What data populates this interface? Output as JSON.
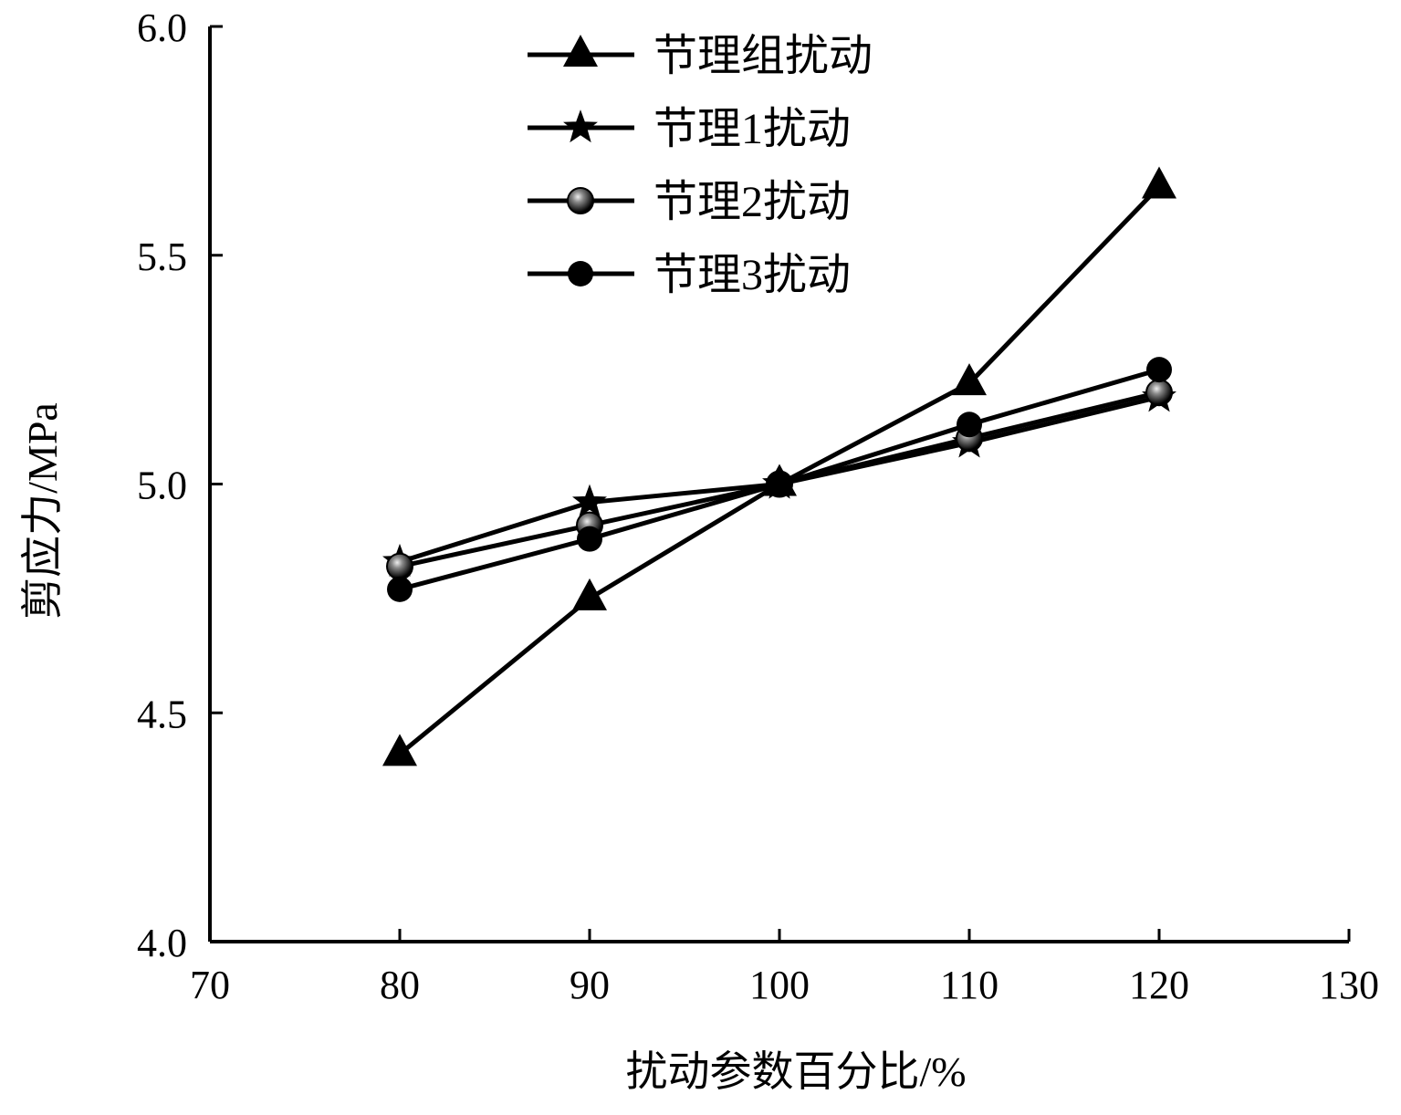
{
  "chart_data": {
    "type": "line",
    "title": "",
    "xlabel": "扰动参数百分比/%",
    "ylabel": "剪应力/MPa",
    "xlim": [
      70,
      130
    ],
    "ylim": [
      4.0,
      6.0
    ],
    "xticks": [
      "70",
      "80",
      "90",
      "100",
      "110",
      "120",
      "130"
    ],
    "yticks": [
      "4.0",
      "4.5",
      "5.0",
      "5.5",
      "6.0"
    ],
    "x": [
      80,
      90,
      100,
      110,
      120
    ],
    "legend_position": "top-center",
    "grid": false,
    "series": [
      {
        "name": "节理组扰动",
        "marker": "triangle",
        "values": [
          4.41,
          4.75,
          5.0,
          5.22,
          5.65
        ]
      },
      {
        "name": "节理1扰动",
        "marker": "star",
        "values": [
          4.83,
          4.96,
          5.0,
          5.09,
          5.19
        ]
      },
      {
        "name": "节理2扰动",
        "marker": "shaded-circle",
        "values": [
          4.82,
          4.91,
          5.0,
          5.1,
          5.2
        ]
      },
      {
        "name": "节理3扰动",
        "marker": "circle",
        "values": [
          4.77,
          4.88,
          5.0,
          5.13,
          5.25
        ]
      }
    ]
  }
}
